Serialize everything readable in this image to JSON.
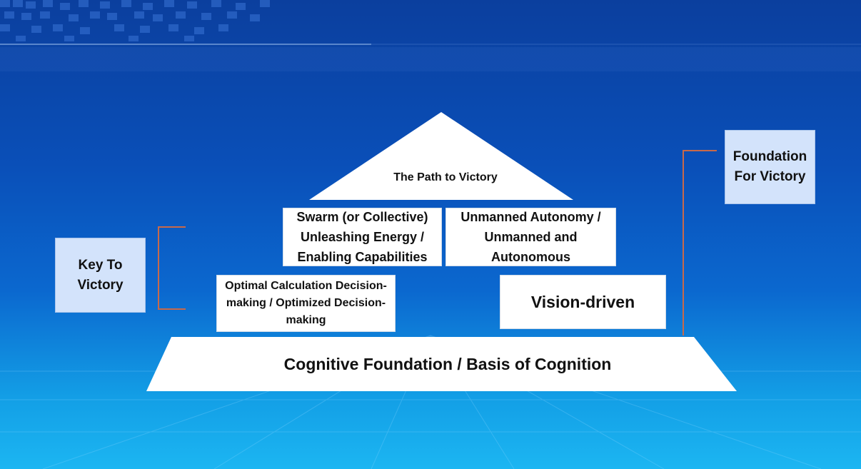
{
  "diagram": {
    "apex": {
      "text": "The Path to Victory"
    },
    "middle_left": {
      "text": "Swarm (or Collective) Unleashing Energy / Enabling Capabilities"
    },
    "middle_right": {
      "text": "Unmanned Autonomy / Unmanned and Autonomous"
    },
    "lower_left": {
      "text": "Optimal Calculation Decision-making / Optimized Decision-making"
    },
    "lower_right": {
      "text": "Vision-driven"
    },
    "base": {
      "text": "Cognitive Foundation / Basis of Cognition"
    }
  },
  "side_labels": {
    "left": {
      "text": "Key To Victory"
    },
    "right": {
      "text": "Foundation For Victory"
    }
  },
  "colors": {
    "background_top": "#0b3f9e",
    "background_bottom": "#1cb6f2",
    "box_fill": "#ffffff",
    "side_box_fill": "#d3e3fb",
    "connector": "#c8694a"
  }
}
